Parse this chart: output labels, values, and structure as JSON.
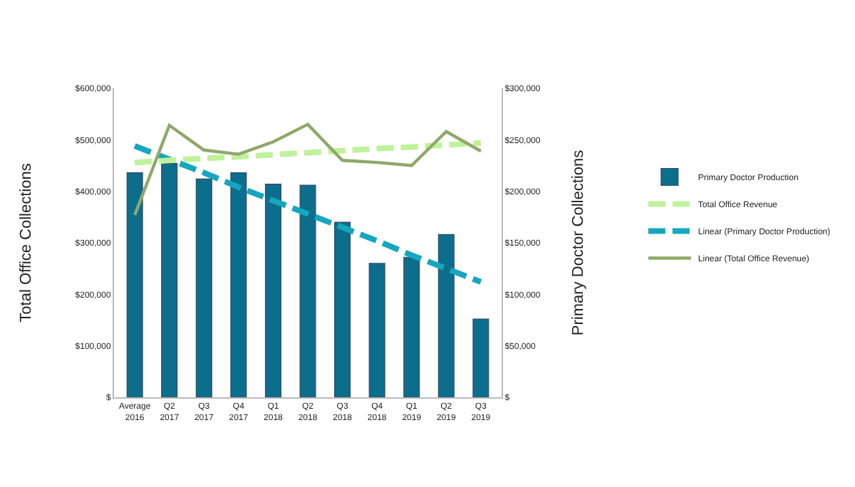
{
  "chart_data": {
    "type": "bar",
    "categories": [
      "Average\n2016",
      "Q2\n2017",
      "Q3\n2017",
      "Q4\n2017",
      "Q1\n2018",
      "Q2\n2018",
      "Q3\n2018",
      "Q4\n2018",
      "Q1\n2019",
      "Q2\n2019",
      "Q3\n2019"
    ],
    "series": [
      {
        "name": "Primary Doctor Production",
        "axis": "y2",
        "color": "#0b6e8c",
        "values": [
          218000,
          227000,
          212000,
          218000,
          207000,
          206000,
          170000,
          130000,
          136000,
          158000,
          76000
        ]
      },
      {
        "name": "Total Office Revenue",
        "type": "line",
        "line_style": "dashed",
        "color": "#bff29a",
        "values": [
          456000,
          460000,
          464000,
          467000,
          471000,
          475000,
          479000,
          483000,
          486000,
          490000,
          494000
        ]
      },
      {
        "name": "Linear (Primary Doctor Production)",
        "type": "line",
        "line_style": "dashed",
        "axis": "y2",
        "color": "#16a6bf",
        "values": [
          244000,
          231000,
          218000,
          204000,
          191000,
          178000,
          165000,
          152000,
          138000,
          125000,
          112000
        ]
      },
      {
        "name": "Linear (Total Office Revenue)",
        "type": "line",
        "line_style": "solid",
        "color": "#8fa86a",
        "values": [
          354000,
          528000,
          480000,
          472000,
          496000,
          530000,
          460000,
          456000,
          450000,
          516000,
          478000
        ]
      }
    ],
    "ylabel": "Total Office Collections",
    "y2label": "Primary Doctor Collections",
    "ylim": [
      0,
      600000
    ],
    "yticks": [
      {
        "value": 0,
        "label": "$"
      },
      {
        "value": 100000,
        "label": "$100,000"
      },
      {
        "value": 200000,
        "label": "$200,000"
      },
      {
        "value": 300000,
        "label": "$300,000"
      },
      {
        "value": 400000,
        "label": "$400,000"
      },
      {
        "value": 500000,
        "label": "$500,000"
      },
      {
        "value": 600000,
        "label": "$600,000"
      }
    ],
    "y2lim": [
      0,
      300000
    ],
    "y2ticks": [
      {
        "value": 0,
        "label": "$"
      },
      {
        "value": 50000,
        "label": "$50,000"
      },
      {
        "value": 100000,
        "label": "$100,000"
      },
      {
        "value": 150000,
        "label": "$150,000"
      },
      {
        "value": 200000,
        "label": "$200,000"
      },
      {
        "value": 250000,
        "label": "$250,000"
      },
      {
        "value": 300000,
        "label": "$300,000"
      }
    ],
    "legend": "right"
  }
}
